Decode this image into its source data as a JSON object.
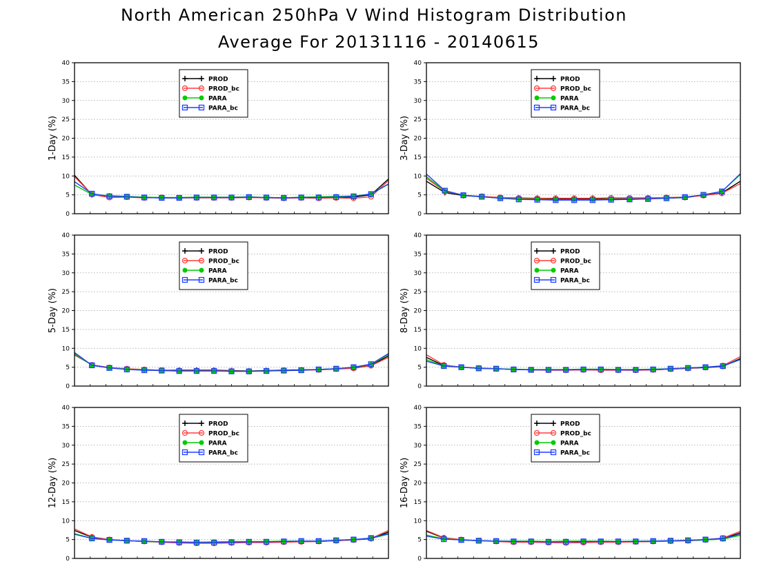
{
  "title": "North American 250hPa V Wind Histogram Distribution",
  "subtitle": "Average For 20131116 - 20140615",
  "chart_data": [
    {
      "type": "line",
      "ylabel": "1-Day (%)",
      "ylim": [
        0,
        40
      ],
      "yticks": [
        "0",
        "5",
        "10",
        "15",
        "20",
        "25",
        "30",
        "35",
        "40"
      ],
      "grid": true,
      "legend_position": "top-left",
      "series": [
        {
          "name": "PROD",
          "color": "#000000",
          "marker": "plus",
          "values": [
            10.2,
            5.0,
            4.7,
            4.5,
            4.3,
            4.2,
            4.2,
            4.3,
            4.3,
            4.3,
            4.4,
            4.3,
            4.2,
            4.3,
            4.2,
            4.3,
            4.4,
            5.0,
            9.2
          ]
        },
        {
          "name": "PROD_bc",
          "color": "#ff3b3b",
          "marker": "circle",
          "values": [
            9.8,
            5.1,
            4.3,
            4.4,
            4.2,
            4.3,
            4.2,
            4.2,
            4.2,
            4.2,
            4.3,
            4.2,
            4.1,
            4.2,
            4.1,
            4.2,
            4.1,
            4.5,
            8.8
          ]
        },
        {
          "name": "PARA",
          "color": "#00cc00",
          "marker": "dot",
          "values": [
            7.6,
            5.1,
            4.8,
            4.6,
            4.4,
            4.3,
            4.3,
            4.4,
            4.4,
            4.4,
            4.5,
            4.3,
            4.2,
            4.4,
            4.5,
            4.6,
            4.7,
            5.2,
            7.8
          ]
        },
        {
          "name": "PARA_bc",
          "color": "#1f3fff",
          "marker": "square",
          "values": [
            8.5,
            5.3,
            4.6,
            4.5,
            4.3,
            4.2,
            4.2,
            4.3,
            4.3,
            4.3,
            4.4,
            4.3,
            4.2,
            4.3,
            4.3,
            4.4,
            4.6,
            5.2,
            7.9
          ]
        }
      ]
    },
    {
      "type": "line",
      "ylabel": "3-Day (%)",
      "ylim": [
        0,
        40
      ],
      "yticks": [
        "0",
        "5",
        "10",
        "15",
        "20",
        "25",
        "30",
        "35",
        "40"
      ],
      "grid": true,
      "legend_position": "top-left",
      "series": [
        {
          "name": "PROD",
          "color": "#000000",
          "marker": "plus",
          "values": [
            8.6,
            5.6,
            4.8,
            4.5,
            4.2,
            4.0,
            4.0,
            3.9,
            3.9,
            3.9,
            3.9,
            3.9,
            4.0,
            4.1,
            4.3,
            4.9,
            5.5,
            8.6
          ]
        },
        {
          "name": "PROD_bc",
          "color": "#ff3b3b",
          "marker": "circle",
          "values": [
            9.4,
            5.9,
            4.9,
            4.6,
            4.3,
            4.2,
            4.1,
            4.1,
            4.1,
            4.1,
            4.2,
            4.2,
            4.2,
            4.3,
            4.4,
            4.8,
            5.4,
            8.0
          ]
        },
        {
          "name": "PARA",
          "color": "#00cc00",
          "marker": "dot",
          "values": [
            9.8,
            6.0,
            4.9,
            4.5,
            4.1,
            3.9,
            3.8,
            3.7,
            3.7,
            3.7,
            3.8,
            3.8,
            3.9,
            4.1,
            4.4,
            5.0,
            5.9,
            10.4
          ]
        },
        {
          "name": "PARA_bc",
          "color": "#1f3fff",
          "marker": "square",
          "values": [
            10.5,
            6.1,
            4.9,
            4.5,
            4.1,
            3.8,
            3.7,
            3.6,
            3.6,
            3.6,
            3.7,
            3.8,
            3.9,
            4.1,
            4.4,
            5.0,
            5.9,
            10.6
          ]
        }
      ]
    },
    {
      "type": "line",
      "ylabel": "5-Day (%)",
      "ylim": [
        0,
        40
      ],
      "yticks": [
        "0",
        "5",
        "10",
        "15",
        "20",
        "25",
        "30",
        "35",
        "40"
      ],
      "grid": true,
      "legend_position": "top-left",
      "series": [
        {
          "name": "PROD",
          "color": "#000000",
          "marker": "plus",
          "values": [
            8.3,
            5.6,
            4.9,
            4.5,
            4.3,
            4.2,
            4.2,
            4.2,
            4.2,
            4.1,
            4.0,
            4.1,
            4.2,
            4.3,
            4.4,
            4.6,
            4.8,
            5.5,
            8.0
          ]
        },
        {
          "name": "PROD_bc",
          "color": "#ff3b3b",
          "marker": "circle",
          "values": [
            8.4,
            5.6,
            4.9,
            4.6,
            4.4,
            4.2,
            4.1,
            4.1,
            4.1,
            4.0,
            3.9,
            4.0,
            4.1,
            4.2,
            4.3,
            4.5,
            4.7,
            5.4,
            7.6
          ]
        },
        {
          "name": "PARA",
          "color": "#00cc00",
          "marker": "dot",
          "values": [
            8.6,
            5.5,
            4.8,
            4.5,
            4.3,
            4.1,
            4.0,
            4.0,
            4.0,
            3.9,
            3.9,
            4.0,
            4.1,
            4.2,
            4.4,
            4.6,
            5.0,
            5.7,
            8.4
          ]
        },
        {
          "name": "PARA_bc",
          "color": "#1f3fff",
          "marker": "square",
          "values": [
            8.9,
            5.5,
            4.8,
            4.4,
            4.2,
            4.1,
            4.0,
            4.0,
            4.0,
            3.9,
            3.9,
            4.0,
            4.1,
            4.2,
            4.4,
            4.6,
            5.0,
            5.8,
            8.6
          ]
        }
      ]
    },
    {
      "type": "line",
      "ylabel": "8-Day (%)",
      "ylim": [
        0,
        40
      ],
      "yticks": [
        "0",
        "5",
        "10",
        "15",
        "20",
        "25",
        "30",
        "35",
        "40"
      ],
      "grid": true,
      "legend_position": "top-left",
      "series": [
        {
          "name": "PROD",
          "color": "#000000",
          "marker": "plus",
          "values": [
            7.6,
            5.4,
            5.0,
            4.7,
            4.6,
            4.4,
            4.3,
            4.3,
            4.3,
            4.3,
            4.3,
            4.3,
            4.2,
            4.3,
            4.5,
            4.7,
            4.9,
            5.2,
            7.3
          ]
        },
        {
          "name": "PROD_bc",
          "color": "#ff3b3b",
          "marker": "circle",
          "values": [
            8.3,
            5.6,
            5.0,
            4.8,
            4.6,
            4.4,
            4.3,
            4.2,
            4.2,
            4.3,
            4.2,
            4.2,
            4.2,
            4.3,
            4.5,
            4.7,
            5.0,
            5.4,
            7.8
          ]
        },
        {
          "name": "PARA",
          "color": "#00cc00",
          "marker": "dot",
          "values": [
            7.0,
            5.3,
            5.0,
            4.7,
            4.6,
            4.5,
            4.4,
            4.4,
            4.4,
            4.5,
            4.5,
            4.4,
            4.4,
            4.5,
            4.6,
            4.8,
            5.0,
            5.3,
            7.0
          ]
        },
        {
          "name": "PARA_bc",
          "color": "#1f3fff",
          "marker": "square",
          "values": [
            6.6,
            5.3,
            5.0,
            4.7,
            4.6,
            4.4,
            4.3,
            4.3,
            4.3,
            4.4,
            4.4,
            4.3,
            4.3,
            4.4,
            4.6,
            4.8,
            5.0,
            5.3,
            7.1
          ]
        }
      ]
    },
    {
      "type": "line",
      "ylabel": "12-Day (%)",
      "ylim": [
        0,
        40
      ],
      "yticks": [
        "0",
        "5",
        "10",
        "15",
        "20",
        "25",
        "30",
        "35",
        "40"
      ],
      "grid": true,
      "legend_position": "top-left",
      "series": [
        {
          "name": "PROD",
          "color": "#000000",
          "marker": "plus",
          "values": [
            7.4,
            5.6,
            5.0,
            4.7,
            4.5,
            4.4,
            4.3,
            4.2,
            4.2,
            4.2,
            4.3,
            4.3,
            4.4,
            4.5,
            4.5,
            4.7,
            4.9,
            5.2,
            7.0
          ]
        },
        {
          "name": "PROD_bc",
          "color": "#ff3b3b",
          "marker": "circle",
          "values": [
            7.8,
            5.7,
            5.0,
            4.7,
            4.5,
            4.3,
            4.1,
            4.0,
            4.0,
            4.1,
            4.2,
            4.2,
            4.3,
            4.4,
            4.5,
            4.7,
            4.9,
            5.3,
            7.4
          ]
        },
        {
          "name": "PARA",
          "color": "#00cc00",
          "marker": "dot",
          "values": [
            6.6,
            5.3,
            4.9,
            4.7,
            4.5,
            4.4,
            4.4,
            4.3,
            4.4,
            4.5,
            4.5,
            4.5,
            4.6,
            4.6,
            4.6,
            4.8,
            5.0,
            5.3,
            6.4
          ]
        },
        {
          "name": "PARA_bc",
          "color": "#1f3fff",
          "marker": "square",
          "values": [
            6.4,
            5.3,
            4.9,
            4.7,
            4.6,
            4.4,
            4.3,
            4.2,
            4.2,
            4.3,
            4.4,
            4.4,
            4.5,
            4.6,
            4.6,
            4.8,
            5.0,
            5.4,
            6.6
          ]
        }
      ]
    },
    {
      "type": "line",
      "ylabel": "16-Day (%)",
      "ylim": [
        0,
        40
      ],
      "yticks": [
        "0",
        "5",
        "10",
        "15",
        "20",
        "25",
        "30",
        "35",
        "40"
      ],
      "grid": true,
      "legend_position": "top-left",
      "series": [
        {
          "name": "PROD",
          "color": "#000000",
          "marker": "plus",
          "values": [
            7.2,
            5.4,
            4.9,
            4.7,
            4.6,
            4.5,
            4.5,
            4.4,
            4.4,
            4.4,
            4.3,
            4.4,
            4.4,
            4.5,
            4.6,
            4.7,
            4.9,
            5.2,
            6.8
          ]
        },
        {
          "name": "PROD_bc",
          "color": "#ff3b3b",
          "marker": "circle",
          "values": [
            7.4,
            5.5,
            5.0,
            4.7,
            4.5,
            4.3,
            4.3,
            4.2,
            4.1,
            4.2,
            4.3,
            4.3,
            4.4,
            4.5,
            4.6,
            4.7,
            5.0,
            5.4,
            7.2
          ]
        },
        {
          "name": "PARA",
          "color": "#00cc00",
          "marker": "dot",
          "values": [
            6.2,
            5.2,
            4.9,
            4.7,
            4.6,
            4.6,
            4.6,
            4.5,
            4.6,
            4.6,
            4.6,
            4.5,
            4.6,
            4.6,
            4.7,
            4.8,
            4.9,
            5.1,
            6.1
          ]
        },
        {
          "name": "PARA_bc",
          "color": "#1f3fff",
          "marker": "square",
          "values": [
            5.9,
            5.1,
            4.9,
            4.7,
            4.6,
            4.5,
            4.5,
            4.4,
            4.4,
            4.5,
            4.5,
            4.5,
            4.5,
            4.6,
            4.7,
            4.8,
            5.0,
            5.3,
            6.4
          ]
        }
      ]
    }
  ]
}
